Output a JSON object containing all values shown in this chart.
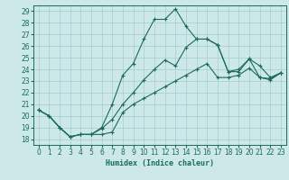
{
  "xlabel": "Humidex (Indice chaleur)",
  "background_color": "#cde8e8",
  "grid_color": "#a8cccc",
  "line_color": "#1a6b5a",
  "xlim": [
    -0.5,
    23.5
  ],
  "ylim": [
    17.5,
    29.5
  ],
  "xticks": [
    0,
    1,
    2,
    3,
    4,
    5,
    6,
    7,
    8,
    9,
    10,
    11,
    12,
    13,
    14,
    15,
    16,
    17,
    18,
    19,
    20,
    21,
    22,
    23
  ],
  "yticks": [
    18,
    19,
    20,
    21,
    22,
    23,
    24,
    25,
    26,
    27,
    28,
    29
  ],
  "series1_y": [
    20.5,
    20.0,
    19.0,
    18.2,
    18.4,
    18.4,
    18.4,
    18.6,
    20.3,
    21.0,
    21.5,
    22.0,
    22.5,
    23.0,
    23.5,
    24.0,
    24.5,
    23.3,
    23.3,
    23.5,
    24.1,
    23.3,
    23.1,
    23.7
  ],
  "series2_y": [
    20.5,
    20.0,
    19.0,
    18.2,
    18.4,
    18.4,
    18.9,
    19.7,
    21.0,
    22.0,
    23.1,
    24.0,
    24.8,
    24.3,
    25.9,
    26.6,
    26.6,
    26.1,
    23.8,
    23.8,
    24.9,
    23.3,
    23.2,
    23.7
  ],
  "series3_y": [
    20.5,
    20.0,
    19.0,
    18.2,
    18.4,
    18.4,
    19.0,
    21.0,
    23.5,
    24.5,
    26.6,
    28.3,
    28.3,
    29.2,
    27.7,
    26.6,
    26.6,
    26.1,
    23.8,
    24.0,
    24.9,
    24.3,
    23.3,
    23.7
  ],
  "tick_fontsize": 5.5,
  "xlabel_fontsize": 6.0
}
